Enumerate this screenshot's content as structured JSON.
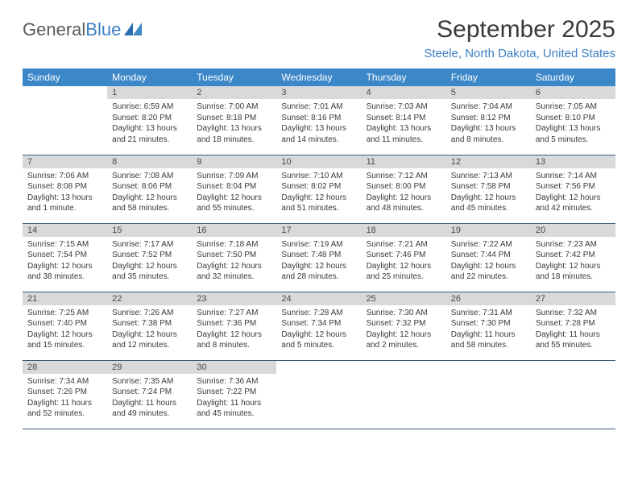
{
  "brand": {
    "part1": "General",
    "part2": "Blue"
  },
  "title": "September 2025",
  "location": "Steele, North Dakota, United States",
  "colors": {
    "header_bg": "#3b87c8",
    "header_text": "#ffffff",
    "daynum_bg": "#d7d9db",
    "border": "#3a5a78",
    "accent": "#3b7fc4",
    "text": "#3a3a3a"
  },
  "daysOfWeek": [
    "Sunday",
    "Monday",
    "Tuesday",
    "Wednesday",
    "Thursday",
    "Friday",
    "Saturday"
  ],
  "weeks": [
    [
      null,
      {
        "n": "1",
        "sr": "6:59 AM",
        "ss": "8:20 PM",
        "dl": "13 hours and 21 minutes."
      },
      {
        "n": "2",
        "sr": "7:00 AM",
        "ss": "8:18 PM",
        "dl": "13 hours and 18 minutes."
      },
      {
        "n": "3",
        "sr": "7:01 AM",
        "ss": "8:16 PM",
        "dl": "13 hours and 14 minutes."
      },
      {
        "n": "4",
        "sr": "7:03 AM",
        "ss": "8:14 PM",
        "dl": "13 hours and 11 minutes."
      },
      {
        "n": "5",
        "sr": "7:04 AM",
        "ss": "8:12 PM",
        "dl": "13 hours and 8 minutes."
      },
      {
        "n": "6",
        "sr": "7:05 AM",
        "ss": "8:10 PM",
        "dl": "13 hours and 5 minutes."
      }
    ],
    [
      {
        "n": "7",
        "sr": "7:06 AM",
        "ss": "8:08 PM",
        "dl": "13 hours and 1 minute."
      },
      {
        "n": "8",
        "sr": "7:08 AM",
        "ss": "8:06 PM",
        "dl": "12 hours and 58 minutes."
      },
      {
        "n": "9",
        "sr": "7:09 AM",
        "ss": "8:04 PM",
        "dl": "12 hours and 55 minutes."
      },
      {
        "n": "10",
        "sr": "7:10 AM",
        "ss": "8:02 PM",
        "dl": "12 hours and 51 minutes."
      },
      {
        "n": "11",
        "sr": "7:12 AM",
        "ss": "8:00 PM",
        "dl": "12 hours and 48 minutes."
      },
      {
        "n": "12",
        "sr": "7:13 AM",
        "ss": "7:58 PM",
        "dl": "12 hours and 45 minutes."
      },
      {
        "n": "13",
        "sr": "7:14 AM",
        "ss": "7:56 PM",
        "dl": "12 hours and 42 minutes."
      }
    ],
    [
      {
        "n": "14",
        "sr": "7:15 AM",
        "ss": "7:54 PM",
        "dl": "12 hours and 38 minutes."
      },
      {
        "n": "15",
        "sr": "7:17 AM",
        "ss": "7:52 PM",
        "dl": "12 hours and 35 minutes."
      },
      {
        "n": "16",
        "sr": "7:18 AM",
        "ss": "7:50 PM",
        "dl": "12 hours and 32 minutes."
      },
      {
        "n": "17",
        "sr": "7:19 AM",
        "ss": "7:48 PM",
        "dl": "12 hours and 28 minutes."
      },
      {
        "n": "18",
        "sr": "7:21 AM",
        "ss": "7:46 PM",
        "dl": "12 hours and 25 minutes."
      },
      {
        "n": "19",
        "sr": "7:22 AM",
        "ss": "7:44 PM",
        "dl": "12 hours and 22 minutes."
      },
      {
        "n": "20",
        "sr": "7:23 AM",
        "ss": "7:42 PM",
        "dl": "12 hours and 18 minutes."
      }
    ],
    [
      {
        "n": "21",
        "sr": "7:25 AM",
        "ss": "7:40 PM",
        "dl": "12 hours and 15 minutes."
      },
      {
        "n": "22",
        "sr": "7:26 AM",
        "ss": "7:38 PM",
        "dl": "12 hours and 12 minutes."
      },
      {
        "n": "23",
        "sr": "7:27 AM",
        "ss": "7:36 PM",
        "dl": "12 hours and 8 minutes."
      },
      {
        "n": "24",
        "sr": "7:28 AM",
        "ss": "7:34 PM",
        "dl": "12 hours and 5 minutes."
      },
      {
        "n": "25",
        "sr": "7:30 AM",
        "ss": "7:32 PM",
        "dl": "12 hours and 2 minutes."
      },
      {
        "n": "26",
        "sr": "7:31 AM",
        "ss": "7:30 PM",
        "dl": "11 hours and 58 minutes."
      },
      {
        "n": "27",
        "sr": "7:32 AM",
        "ss": "7:28 PM",
        "dl": "11 hours and 55 minutes."
      }
    ],
    [
      {
        "n": "28",
        "sr": "7:34 AM",
        "ss": "7:26 PM",
        "dl": "11 hours and 52 minutes."
      },
      {
        "n": "29",
        "sr": "7:35 AM",
        "ss": "7:24 PM",
        "dl": "11 hours and 49 minutes."
      },
      {
        "n": "30",
        "sr": "7:36 AM",
        "ss": "7:22 PM",
        "dl": "11 hours and 45 minutes."
      },
      null,
      null,
      null,
      null
    ]
  ],
  "labels": {
    "sunrise": "Sunrise:",
    "sunset": "Sunset:",
    "daylight": "Daylight:"
  }
}
